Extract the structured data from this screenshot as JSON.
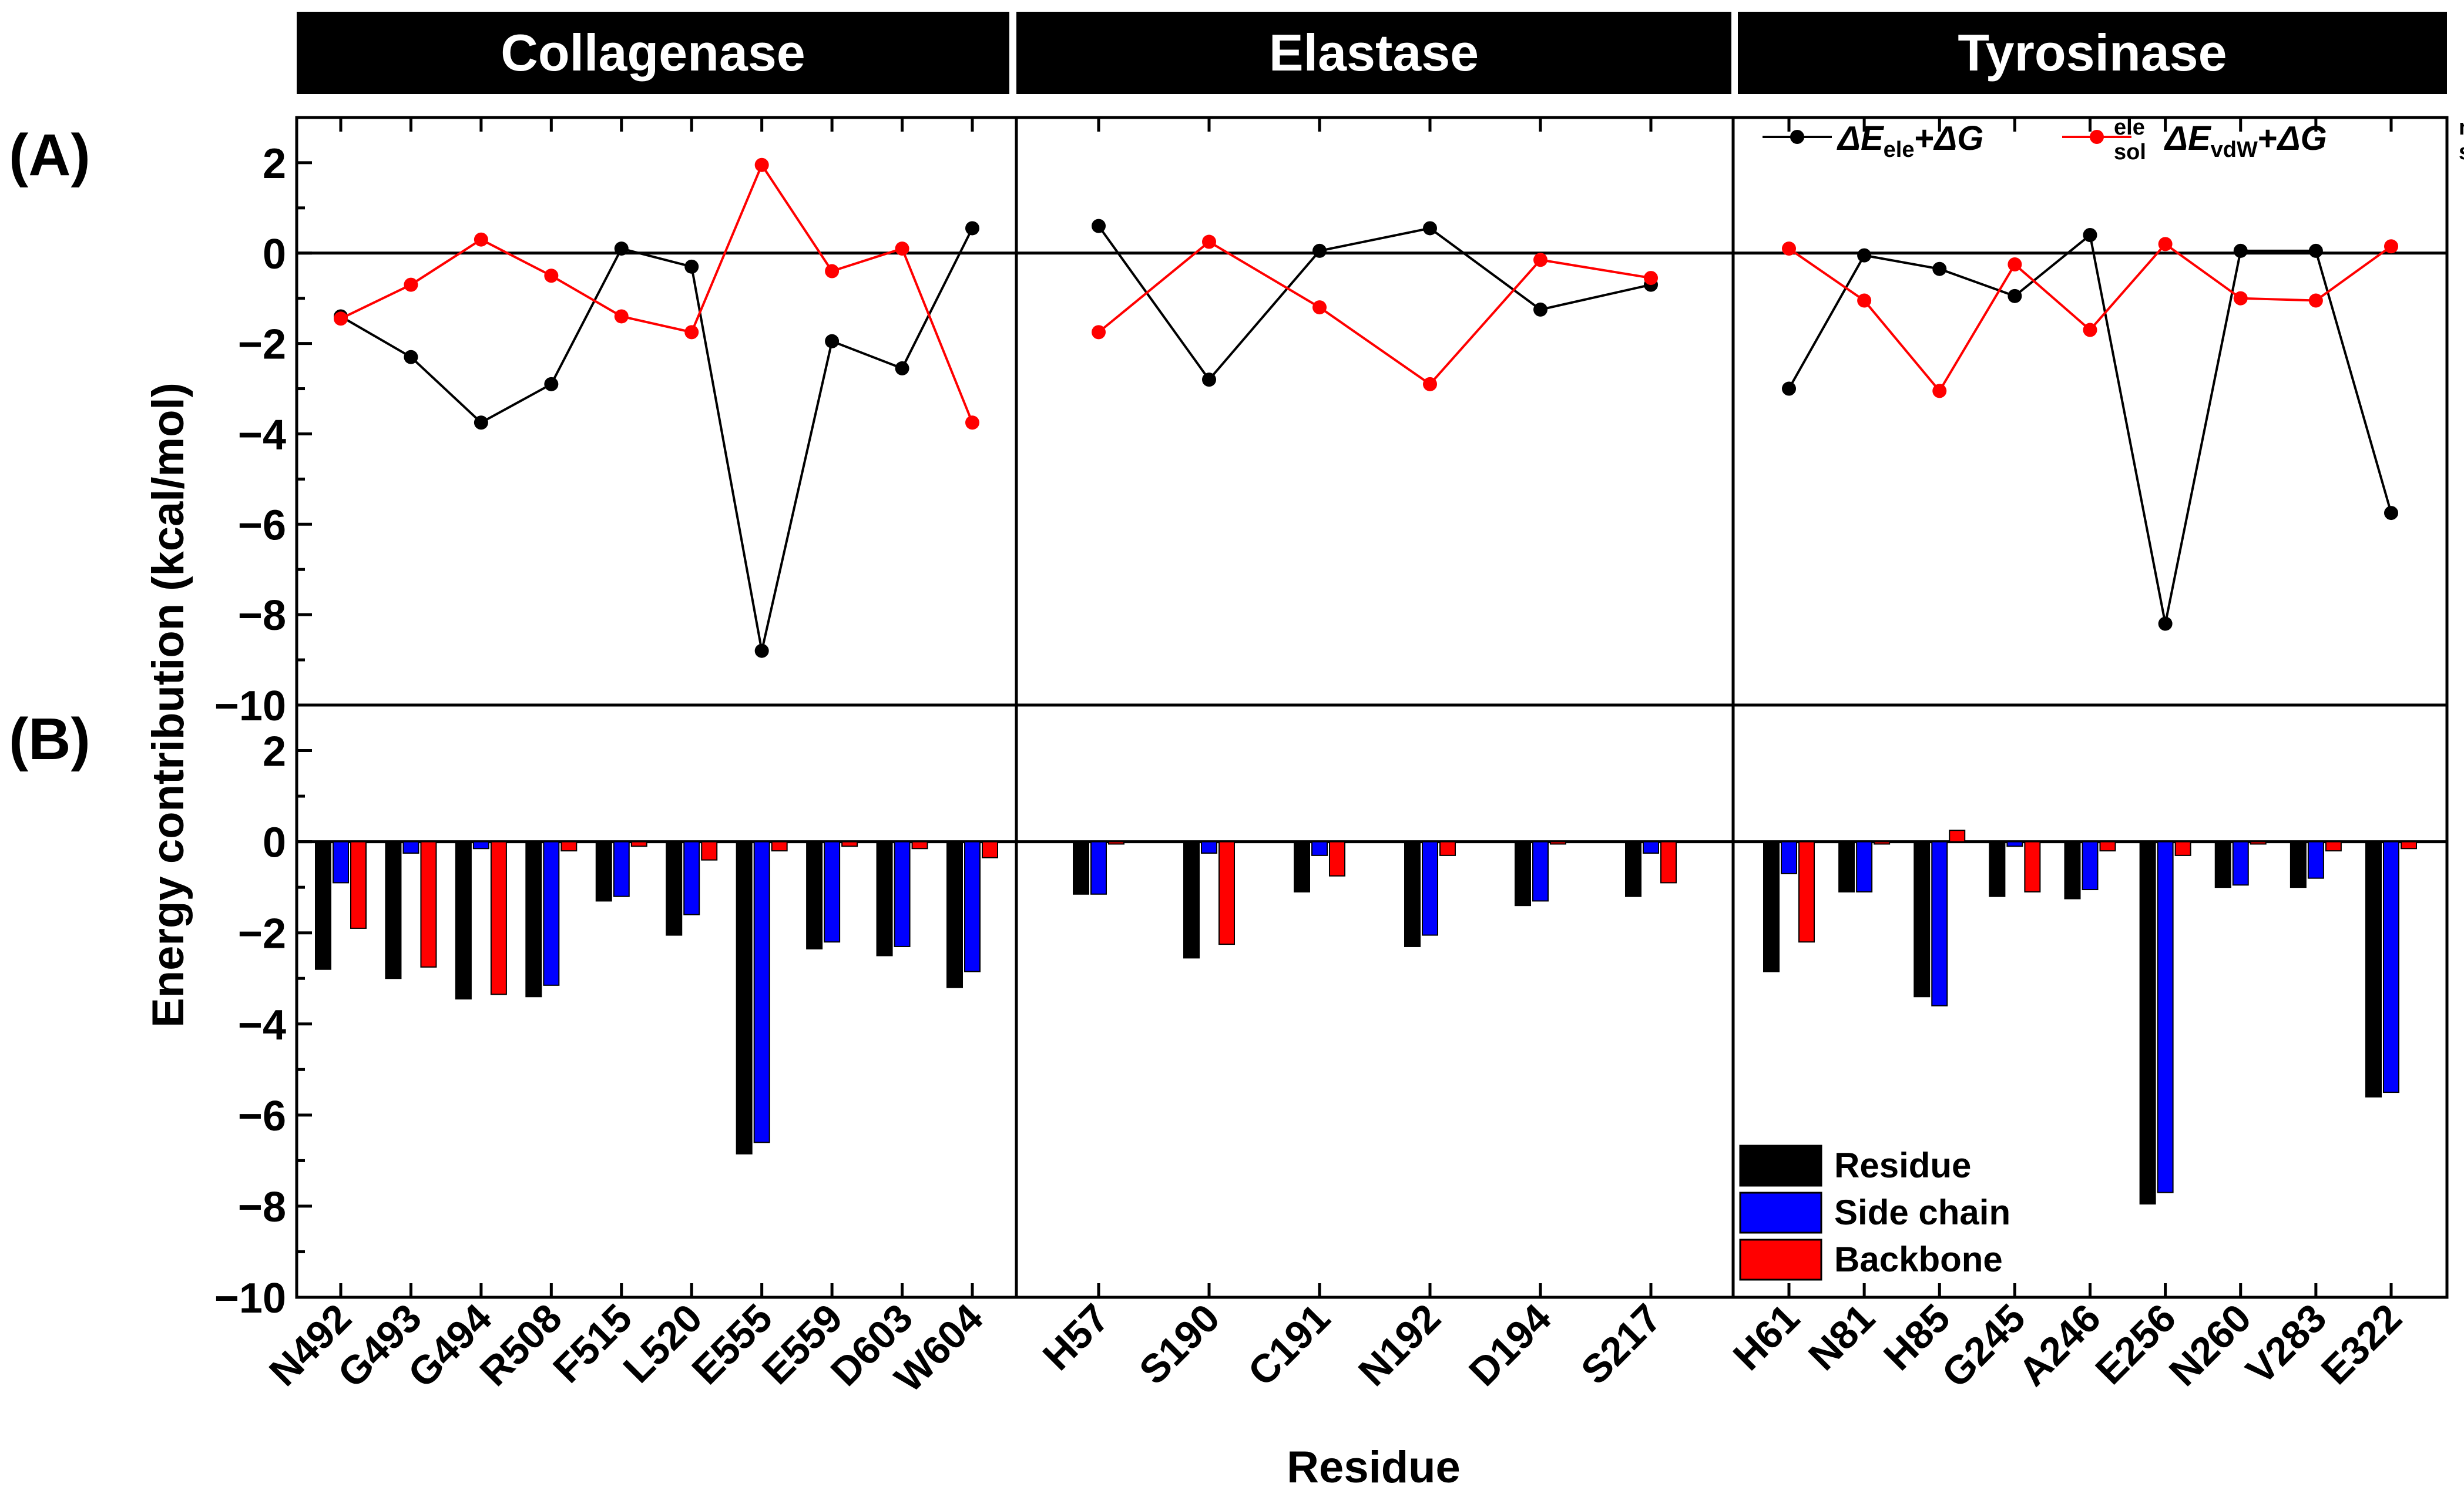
{
  "chart_data": {
    "type": "line+bar",
    "panels": [
      "Collagenase",
      "Elastase",
      "Tyrosinase"
    ],
    "panel_labels": {
      "a": "(A)",
      "b": "(B)"
    },
    "ylabel": "Energy contribution (kcal/mol)",
    "xlabel": "Residue",
    "ylim_a": [
      -10,
      3
    ],
    "ylim_b": [
      -10,
      3
    ],
    "yticks": [
      -10,
      -8,
      -6,
      -4,
      -2,
      0,
      2
    ],
    "ytick_labels": [
      "−10",
      "−8",
      "−6",
      "−4",
      "−2",
      "0",
      "2"
    ],
    "line_legend": {
      "ele": {
        "delta1": "ΔE",
        "sub1": "ele",
        "plus": "+",
        "delta2": "ΔG",
        "sup2": "ele",
        "sub2": "sol"
      },
      "vdw": {
        "delta1": "ΔE",
        "sub1": "vdW",
        "plus": "+",
        "delta2": "ΔG",
        "sup2": "nonpolar",
        "sub2": "sol"
      }
    },
    "bar_legend": [
      "Residue",
      "Side chain",
      "Backbone"
    ],
    "colors": {
      "ele": "#000000",
      "vdw": "#ff0000",
      "residue": "#000000",
      "side_chain": "#0000ff",
      "backbone": "#ff0000",
      "title_bg": "#000000",
      "title_fg": "#ffffff"
    },
    "groups": [
      {
        "name": "Collagenase",
        "residues": [
          "N492",
          "G493",
          "G494",
          "R508",
          "F515",
          "L520",
          "E555",
          "E559",
          "D603",
          "W604"
        ],
        "ele": [
          -1.4,
          -2.3,
          -3.75,
          -2.9,
          0.1,
          -0.3,
          -8.8,
          -1.95,
          -2.55,
          0.55
        ],
        "vdw": [
          -1.45,
          -0.7,
          0.3,
          -0.5,
          -1.4,
          -1.75,
          1.95,
          -0.4,
          0.1,
          -3.75
        ],
        "residue": [
          -2.8,
          -3.0,
          -3.45,
          -3.4,
          -1.3,
          -2.05,
          -6.85,
          -2.35,
          -2.5,
          -3.2
        ],
        "side_chain": [
          -0.9,
          -0.25,
          -0.15,
          -3.15,
          -1.2,
          -1.6,
          -6.6,
          -2.2,
          -2.3,
          -2.85
        ],
        "backbone": [
          -1.9,
          -2.75,
          -3.35,
          -0.2,
          -0.1,
          -0.4,
          -0.2,
          -0.1,
          -0.15,
          -0.35
        ]
      },
      {
        "name": "Elastase",
        "residues": [
          "H57",
          "S190",
          "C191",
          "N192",
          "D194",
          "S217"
        ],
        "ele": [
          0.6,
          -2.8,
          0.05,
          0.55,
          -1.25,
          -0.7
        ],
        "vdw": [
          -1.75,
          0.25,
          -1.2,
          -2.9,
          -0.15,
          -0.55
        ],
        "residue": [
          -1.15,
          -2.55,
          -1.1,
          -2.3,
          -1.4,
          -1.2
        ],
        "side_chain": [
          -1.15,
          -0.25,
          -0.3,
          -2.05,
          -1.3,
          -0.25
        ],
        "backbone": [
          -0.05,
          -2.25,
          -0.75,
          -0.3,
          -0.05,
          -0.9
        ]
      },
      {
        "name": "Tyrosinase",
        "residues": [
          "H61",
          "N81",
          "H85",
          "G245",
          "A246",
          "E256",
          "N260",
          "V283",
          "E322"
        ],
        "ele": [
          -3.0,
          -0.05,
          -0.35,
          -0.95,
          0.4,
          -8.2,
          0.05,
          0.05,
          -5.75
        ],
        "vdw": [
          0.1,
          -1.05,
          -3.05,
          -0.25,
          -1.7,
          0.2,
          -1.0,
          -1.05,
          0.15
        ],
        "residue": [
          -2.85,
          -1.1,
          -3.4,
          -1.2,
          -1.25,
          -7.95,
          -1.0,
          -1.0,
          -5.6
        ],
        "side_chain": [
          -0.7,
          -1.1,
          -3.6,
          -0.1,
          -1.05,
          -7.7,
          -0.95,
          -0.8,
          -5.5
        ],
        "backbone": [
          -2.2,
          -0.05,
          0.25,
          -1.1,
          -0.2,
          -0.3,
          -0.05,
          -0.2,
          -0.15
        ]
      }
    ]
  }
}
